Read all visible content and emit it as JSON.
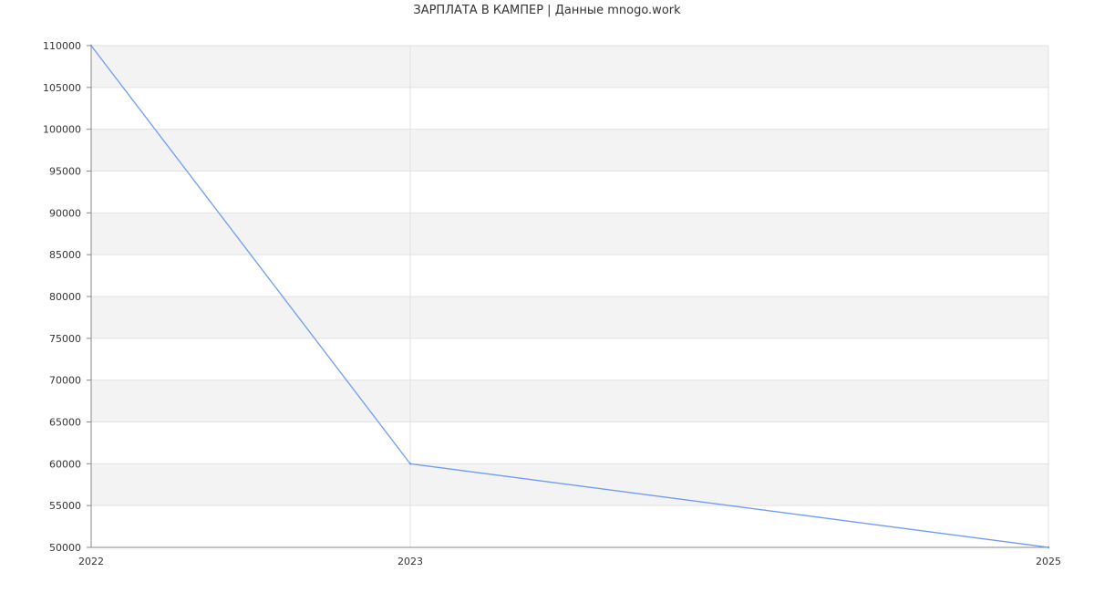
{
  "chart_data": {
    "type": "line",
    "title": "ЗАРПЛАТА В КАМПЕР | Данные mnogo.work",
    "xlabel": "",
    "ylabel": "",
    "x": [
      "2022",
      "2023",
      "2025"
    ],
    "series": [
      {
        "values": [
          110000,
          60000,
          50000
        ]
      }
    ],
    "ylim": [
      50000,
      110000
    ],
    "yticks": [
      50000,
      55000,
      60000,
      65000,
      70000,
      75000,
      80000,
      85000,
      90000,
      95000,
      100000,
      105000,
      110000
    ],
    "grid": true,
    "legend": "none",
    "colors": {
      "line": "#6f9cf0",
      "band": "#f3f3f3",
      "grid": "#e2e2e2",
      "axis": "#888888",
      "text": "#333333"
    }
  }
}
